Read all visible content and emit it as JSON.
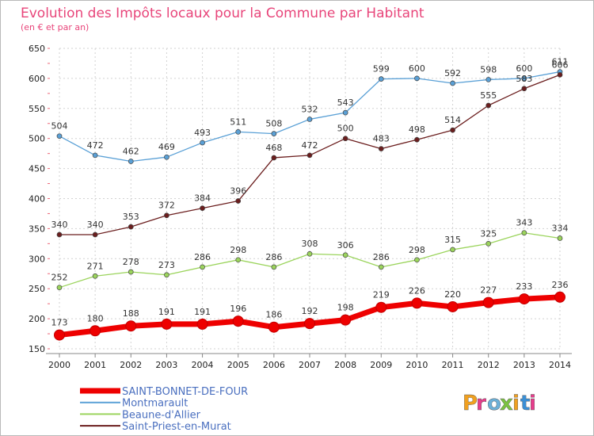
{
  "chart_data": {
    "type": "line",
    "title": "Evolution des Impôts locaux pour la Commune par Habitant",
    "subtitle": "(en € et par an)",
    "xlabel": "",
    "ylabel": "",
    "ylim": [
      150,
      650
    ],
    "yticks": [
      150,
      200,
      250,
      300,
      350,
      400,
      450,
      500,
      550,
      600,
      650
    ],
    "grid": true,
    "legend_position": "bottom-left",
    "x": [
      "2000",
      "2001",
      "2002",
      "2003",
      "2004",
      "2005",
      "2006",
      "2007",
      "2008",
      "2009",
      "2010",
      "2011",
      "2012",
      "2013",
      "2014"
    ],
    "series": [
      {
        "name": "SAINT-BONNET-DE-FOUR",
        "color": "#ee0000",
        "values": [
          173,
          180,
          188,
          191,
          191,
          196,
          186,
          192,
          198,
          219,
          226,
          220,
          227,
          233,
          236
        ]
      },
      {
        "name": "Montmarault",
        "color": "#5aa0d6",
        "values": [
          504,
          472,
          462,
          469,
          493,
          511,
          508,
          532,
          543,
          599,
          600,
          592,
          598,
          600,
          611
        ]
      },
      {
        "name": "Beaune-d'Allier",
        "color": "#9bd45c",
        "values": [
          252,
          271,
          278,
          273,
          286,
          298,
          286,
          308,
          306,
          286,
          298,
          315,
          325,
          343,
          334
        ]
      },
      {
        "name": "Saint-Priest-en-Murat",
        "color": "#6b1e1e",
        "values": [
          340,
          340,
          353,
          372,
          384,
          396,
          468,
          472,
          500,
          483,
          498,
          514,
          555,
          583,
          606
        ]
      }
    ]
  },
  "logo": {
    "text": "Proxiti"
  }
}
